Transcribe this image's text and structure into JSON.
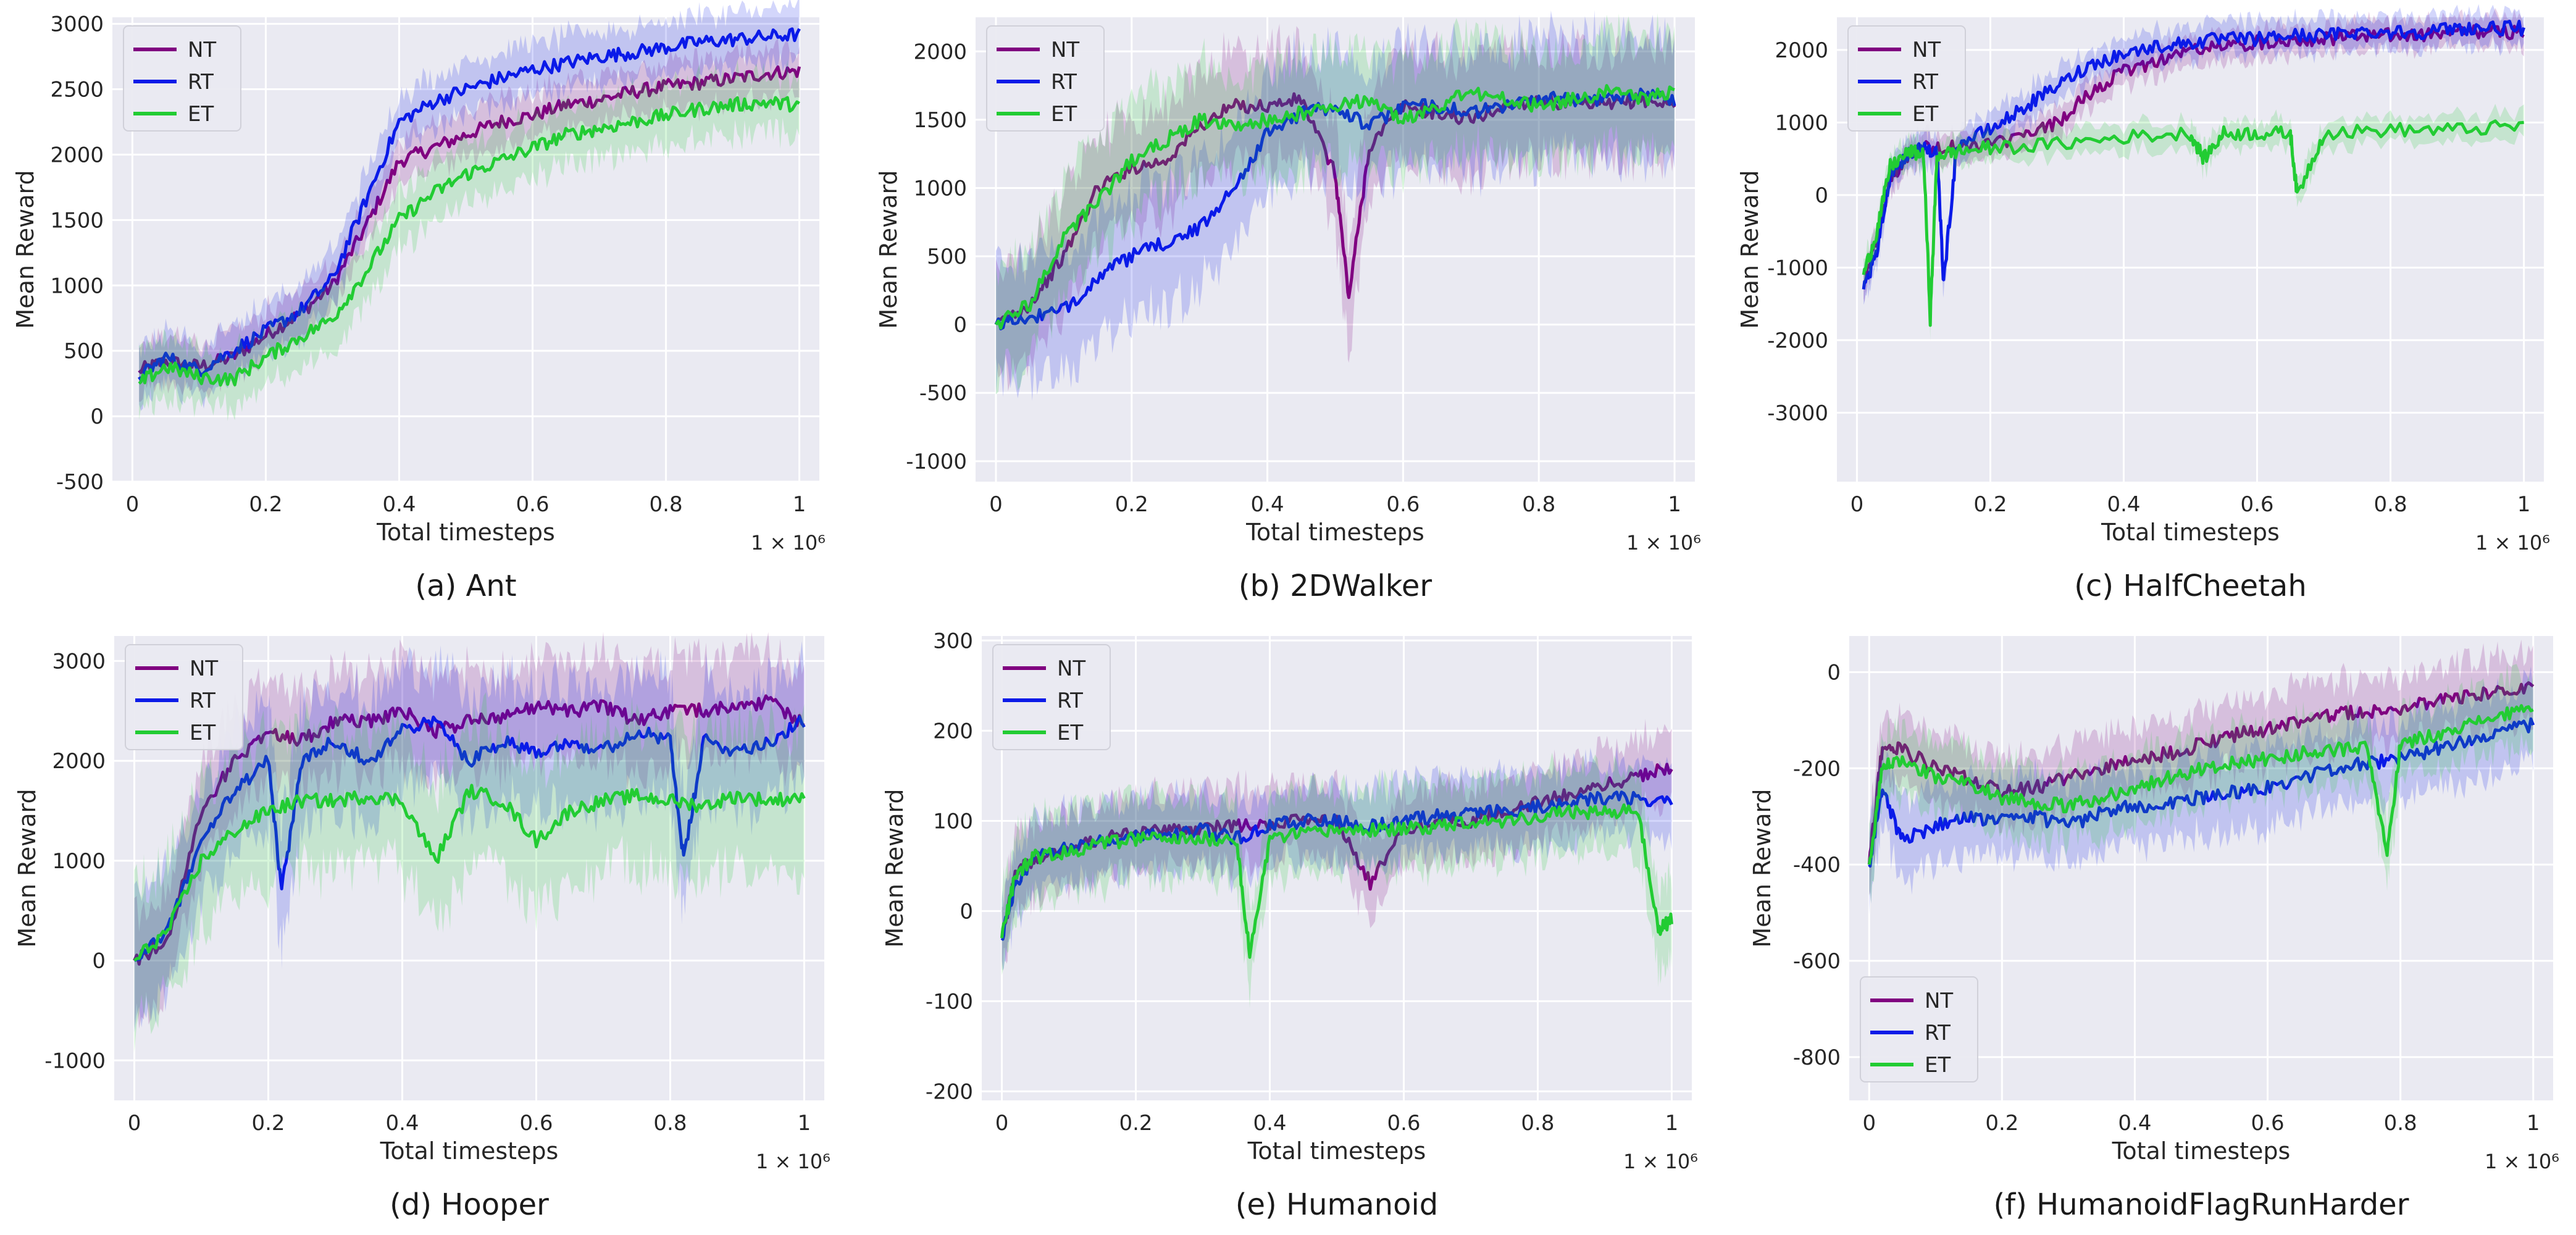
{
  "colors": {
    "NT": "#800080",
    "RT": "#0a1ae8",
    "ET": "#22cc33",
    "plot_bg": "#eaeaf2",
    "grid": "#ffffff"
  },
  "chart_data": [
    {
      "type": "line",
      "caption": "(a) Ant",
      "xlabel": "Total timesteps",
      "ylabel": "Mean Reward",
      "x_offset_label": "1 × 10⁶",
      "xlim": [
        -0.03,
        1.03
      ],
      "ylim": [
        -500,
        3050
      ],
      "xticks": [
        0.0,
        0.2,
        0.4,
        0.6,
        0.8,
        1.0
      ],
      "yticks": [
        -500,
        0,
        500,
        1000,
        1500,
        2000,
        2500,
        3000
      ],
      "legend": "top-left",
      "series": [
        {
          "name": "NT",
          "x": [
            0.01,
            0.05,
            0.1,
            0.15,
            0.2,
            0.25,
            0.3,
            0.35,
            0.4,
            0.45,
            0.5,
            0.55,
            0.6,
            0.65,
            0.7,
            0.75,
            0.8,
            0.85,
            0.9,
            0.95,
            1.0
          ],
          "y": [
            350,
            420,
            380,
            450,
            620,
            780,
            1000,
            1450,
            1950,
            2050,
            2150,
            2250,
            2300,
            2380,
            2420,
            2480,
            2520,
            2550,
            2580,
            2620,
            2640
          ],
          "band": 180
        },
        {
          "name": "RT",
          "x": [
            0.01,
            0.05,
            0.1,
            0.15,
            0.2,
            0.25,
            0.3,
            0.35,
            0.4,
            0.45,
            0.5,
            0.55,
            0.6,
            0.65,
            0.7,
            0.75,
            0.8,
            0.85,
            0.9,
            0.95,
            1.0
          ],
          "y": [
            300,
            450,
            350,
            500,
            650,
            800,
            1050,
            1650,
            2250,
            2400,
            2500,
            2580,
            2650,
            2700,
            2750,
            2780,
            2820,
            2860,
            2880,
            2900,
            2920
          ],
          "band": 200
        },
        {
          "name": "ET",
          "x": [
            0.01,
            0.05,
            0.1,
            0.15,
            0.2,
            0.25,
            0.3,
            0.35,
            0.4,
            0.45,
            0.5,
            0.55,
            0.6,
            0.65,
            0.7,
            0.75,
            0.8,
            0.85,
            0.9,
            0.95,
            1.0
          ],
          "y": [
            250,
            380,
            300,
            280,
            450,
            600,
            750,
            1100,
            1500,
            1700,
            1850,
            1950,
            2050,
            2150,
            2200,
            2250,
            2300,
            2350,
            2380,
            2400,
            2380
          ],
          "band": 220
        }
      ]
    },
    {
      "type": "line",
      "caption": "(b) 2DWalker",
      "xlabel": "Total timesteps",
      "ylabel": "Mean Reward",
      "x_offset_label": "1 × 10⁶",
      "xlim": [
        -0.03,
        1.03
      ],
      "ylim": [
        -1150,
        2250
      ],
      "xticks": [
        0.0,
        0.2,
        0.4,
        0.6,
        0.8,
        1.0
      ],
      "yticks": [
        -1000,
        -500,
        0,
        500,
        1000,
        1500,
        2000
      ],
      "legend": "top-left",
      "series": [
        {
          "name": "NT",
          "x": [
            0.0,
            0.05,
            0.1,
            0.15,
            0.2,
            0.25,
            0.3,
            0.35,
            0.4,
            0.45,
            0.5,
            0.52,
            0.55,
            0.6,
            0.65,
            0.7,
            0.75,
            0.8,
            0.85,
            0.9,
            0.95,
            1.0
          ],
          "y": [
            0,
            150,
            500,
            1000,
            1150,
            1200,
            1450,
            1600,
            1600,
            1650,
            1100,
            200,
            1300,
            1600,
            1550,
            1500,
            1600,
            1650,
            1600,
            1600,
            1650,
            1600
          ],
          "band": 400
        },
        {
          "name": "RT",
          "x": [
            0.0,
            0.05,
            0.1,
            0.15,
            0.2,
            0.25,
            0.3,
            0.35,
            0.4,
            0.45,
            0.5,
            0.55,
            0.6,
            0.65,
            0.7,
            0.75,
            0.8,
            0.85,
            0.9,
            0.95,
            1.0
          ],
          "y": [
            0,
            50,
            100,
            350,
            500,
            600,
            700,
            1000,
            1400,
            1550,
            1600,
            1450,
            1600,
            1600,
            1550,
            1600,
            1650,
            1650,
            1650,
            1700,
            1650
          ],
          "band": 450
        },
        {
          "name": "ET",
          "x": [
            0.0,
            0.05,
            0.1,
            0.15,
            0.2,
            0.25,
            0.3,
            0.35,
            0.4,
            0.45,
            0.5,
            0.55,
            0.6,
            0.65,
            0.7,
            0.75,
            0.8,
            0.85,
            0.9,
            0.95,
            1.0
          ],
          "y": [
            0,
            150,
            650,
            900,
            1200,
            1350,
            1500,
            1450,
            1500,
            1550,
            1600,
            1650,
            1500,
            1600,
            1700,
            1650,
            1600,
            1650,
            1700,
            1650,
            1700
          ],
          "band": 400
        }
      ]
    },
    {
      "type": "line",
      "caption": "(c) HalfCheetah",
      "xlabel": "Total timesteps",
      "ylabel": "Mean Reward",
      "x_offset_label": "1 × 10⁶",
      "xlim": [
        -0.03,
        1.03
      ],
      "ylim": [
        -3950,
        2450
      ],
      "xticks": [
        0.0,
        0.2,
        0.4,
        0.6,
        0.8,
        1.0
      ],
      "yticks": [
        -3000,
        -2000,
        -1000,
        0,
        1000,
        2000
      ],
      "legend": "top-left",
      "series": [
        {
          "name": "NT",
          "x": [
            0.01,
            0.03,
            0.05,
            0.08,
            0.1,
            0.15,
            0.2,
            0.25,
            0.3,
            0.35,
            0.4,
            0.45,
            0.5,
            0.55,
            0.6,
            0.65,
            0.7,
            0.75,
            0.8,
            0.85,
            0.9,
            0.95,
            1.0
          ],
          "y": [
            -1200,
            -600,
            200,
            600,
            650,
            650,
            700,
            800,
            1000,
            1400,
            1700,
            1850,
            2000,
            2050,
            2100,
            2150,
            2150,
            2200,
            2200,
            2200,
            2250,
            2250,
            2250
          ],
          "band": 200
        },
        {
          "name": "RT",
          "x": [
            0.01,
            0.03,
            0.05,
            0.08,
            0.1,
            0.12,
            0.13,
            0.15,
            0.2,
            0.25,
            0.3,
            0.35,
            0.4,
            0.45,
            0.5,
            0.55,
            0.6,
            0.65,
            0.7,
            0.75,
            0.8,
            0.85,
            0.9,
            0.95,
            1.0
          ],
          "y": [
            -1300,
            -800,
            300,
            600,
            650,
            600,
            -1200,
            700,
            900,
            1200,
            1500,
            1800,
            1950,
            2050,
            2100,
            2150,
            2150,
            2200,
            2200,
            2250,
            2250,
            2250,
            2300,
            2300,
            2300
          ],
          "band": 220
        },
        {
          "name": "ET",
          "x": [
            0.01,
            0.03,
            0.05,
            0.08,
            0.1,
            0.11,
            0.12,
            0.15,
            0.2,
            0.3,
            0.4,
            0.5,
            0.52,
            0.55,
            0.6,
            0.65,
            0.66,
            0.7,
            0.8,
            0.9,
            1.0
          ],
          "y": [
            -1100,
            -500,
            400,
            600,
            550,
            -1700,
            550,
            600,
            650,
            700,
            800,
            850,
            500,
            850,
            850,
            850,
            0,
            850,
            900,
            900,
            950
          ],
          "band": 180
        }
      ]
    },
    {
      "type": "line",
      "caption": "(d) Hooper",
      "xlabel": "Total timesteps",
      "ylabel": "Mean Reward",
      "x_offset_label": "1 × 10⁶",
      "xlim": [
        -0.03,
        1.03
      ],
      "ylim": [
        -1400,
        3250
      ],
      "xticks": [
        0.0,
        0.2,
        0.4,
        0.6,
        0.8,
        1.0
      ],
      "yticks": [
        -1000,
        0,
        1000,
        2000,
        3000
      ],
      "legend": "top-left",
      "series": [
        {
          "name": "NT",
          "x": [
            0.0,
            0.05,
            0.1,
            0.15,
            0.2,
            0.25,
            0.3,
            0.35,
            0.4,
            0.45,
            0.5,
            0.55,
            0.6,
            0.65,
            0.7,
            0.75,
            0.8,
            0.85,
            0.9,
            0.95,
            1.0
          ],
          "y": [
            0,
            200,
            1500,
            2000,
            2300,
            2200,
            2400,
            2400,
            2500,
            2300,
            2400,
            2450,
            2550,
            2500,
            2550,
            2400,
            2500,
            2500,
            2550,
            2600,
            2350
          ],
          "band": 500
        },
        {
          "name": "RT",
          "x": [
            0.0,
            0.05,
            0.1,
            0.15,
            0.2,
            0.22,
            0.25,
            0.3,
            0.35,
            0.4,
            0.45,
            0.5,
            0.55,
            0.6,
            0.65,
            0.7,
            0.75,
            0.8,
            0.82,
            0.85,
            0.9,
            0.95,
            1.0
          ],
          "y": [
            0,
            300,
            1200,
            1700,
            2000,
            700,
            2000,
            2200,
            2000,
            2300,
            2400,
            2000,
            2200,
            2100,
            2200,
            2100,
            2300,
            2200,
            1000,
            2200,
            2100,
            2200,
            2400
          ],
          "band": 600
        },
        {
          "name": "ET",
          "x": [
            0.0,
            0.05,
            0.1,
            0.15,
            0.2,
            0.25,
            0.3,
            0.35,
            0.4,
            0.45,
            0.5,
            0.55,
            0.6,
            0.65,
            0.7,
            0.75,
            0.8,
            0.85,
            0.9,
            0.95,
            1.0
          ],
          "y": [
            0,
            300,
            1000,
            1300,
            1500,
            1600,
            1600,
            1650,
            1600,
            1000,
            1700,
            1600,
            1200,
            1500,
            1600,
            1650,
            1600,
            1550,
            1650,
            1600,
            1650
          ],
          "band": 700
        }
      ]
    },
    {
      "type": "line",
      "caption": "(e) Humanoid",
      "xlabel": "Total timesteps",
      "ylabel": "Mean Reward",
      "x_offset_label": "1 × 10⁶",
      "xlim": [
        -0.03,
        1.03
      ],
      "ylim": [
        -210,
        305
      ],
      "xticks": [
        0.0,
        0.2,
        0.4,
        0.6,
        0.8,
        1.0
      ],
      "yticks": [
        -200,
        -100,
        0,
        100,
        200,
        300
      ],
      "legend": "top-left",
      "series": [
        {
          "name": "NT",
          "x": [
            0.0,
            0.02,
            0.05,
            0.1,
            0.15,
            0.2,
            0.25,
            0.3,
            0.35,
            0.4,
            0.45,
            0.5,
            0.55,
            0.6,
            0.65,
            0.7,
            0.75,
            0.8,
            0.85,
            0.9,
            0.95,
            1.0
          ],
          "y": [
            -30,
            40,
            60,
            70,
            80,
            85,
            90,
            90,
            95,
            95,
            100,
            100,
            30,
            90,
            100,
            100,
            110,
            120,
            130,
            140,
            150,
            160
          ],
          "band": 40
        },
        {
          "name": "RT",
          "x": [
            0.0,
            0.02,
            0.05,
            0.1,
            0.15,
            0.2,
            0.25,
            0.3,
            0.35,
            0.4,
            0.45,
            0.5,
            0.55,
            0.6,
            0.65,
            0.7,
            0.75,
            0.8,
            0.85,
            0.9,
            0.95,
            1.0
          ],
          "y": [
            -30,
            30,
            60,
            70,
            80,
            85,
            85,
            90,
            80,
            95,
            100,
            100,
            95,
            100,
            105,
            110,
            110,
            115,
            120,
            125,
            125,
            120
          ],
          "band": 40
        },
        {
          "name": "ET",
          "x": [
            0.0,
            0.02,
            0.05,
            0.1,
            0.15,
            0.2,
            0.25,
            0.3,
            0.35,
            0.37,
            0.4,
            0.45,
            0.5,
            0.55,
            0.6,
            0.65,
            0.7,
            0.75,
            0.8,
            0.85,
            0.9,
            0.95,
            0.98,
            1.0
          ],
          "y": [
            -30,
            40,
            60,
            65,
            75,
            80,
            80,
            80,
            80,
            -50,
            80,
            85,
            90,
            90,
            90,
            95,
            100,
            100,
            105,
            110,
            110,
            110,
            -20,
            -10
          ],
          "band": 45
        }
      ]
    },
    {
      "type": "line",
      "caption": "(f) HumanoidFlagRunHarder",
      "xlabel": "Total timesteps",
      "ylabel": "Mean Reward",
      "x_offset_label": "1 × 10⁶",
      "xlim": [
        -0.03,
        1.03
      ],
      "ylim": [
        -890,
        75
      ],
      "xticks": [
        0.0,
        0.2,
        0.4,
        0.6,
        0.8,
        1.0
      ],
      "yticks": [
        -800,
        -600,
        -400,
        -200,
        0
      ],
      "legend": "bottom-left",
      "series": [
        {
          "name": "NT",
          "x": [
            0.0,
            0.02,
            0.05,
            0.1,
            0.15,
            0.2,
            0.25,
            0.3,
            0.35,
            0.4,
            0.45,
            0.5,
            0.55,
            0.6,
            0.65,
            0.7,
            0.75,
            0.8,
            0.85,
            0.9,
            0.95,
            1.0
          ],
          "y": [
            -400,
            -150,
            -160,
            -200,
            -220,
            -250,
            -240,
            -220,
            -200,
            -180,
            -170,
            -150,
            -130,
            -120,
            -100,
            -90,
            -80,
            -80,
            -60,
            -50,
            -40,
            -30
          ],
          "band": 70
        },
        {
          "name": "RT",
          "x": [
            0.0,
            0.02,
            0.05,
            0.1,
            0.15,
            0.2,
            0.25,
            0.3,
            0.35,
            0.4,
            0.45,
            0.5,
            0.55,
            0.6,
            0.65,
            0.7,
            0.75,
            0.8,
            0.85,
            0.9,
            0.95,
            1.0
          ],
          "y": [
            -400,
            -250,
            -350,
            -320,
            -300,
            -310,
            -300,
            -320,
            -290,
            -280,
            -270,
            -260,
            -250,
            -240,
            -220,
            -200,
            -190,
            -180,
            -160,
            -140,
            -120,
            -110
          ],
          "band": 80
        },
        {
          "name": "ET",
          "x": [
            0.0,
            0.02,
            0.05,
            0.1,
            0.15,
            0.2,
            0.25,
            0.3,
            0.35,
            0.4,
            0.45,
            0.5,
            0.55,
            0.6,
            0.65,
            0.7,
            0.75,
            0.78,
            0.8,
            0.85,
            0.9,
            0.95,
            1.0
          ],
          "y": [
            -400,
            -200,
            -180,
            -220,
            -230,
            -260,
            -270,
            -280,
            -260,
            -240,
            -220,
            -200,
            -190,
            -180,
            -170,
            -160,
            -160,
            -380,
            -150,
            -130,
            -110,
            -90,
            -80
          ],
          "band": 70
        }
      ]
    }
  ]
}
